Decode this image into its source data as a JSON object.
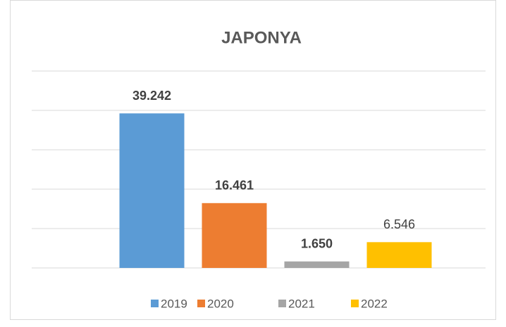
{
  "chart_data": {
    "type": "bar",
    "title": "JAPONYA",
    "categories": [
      null
    ],
    "series": [
      {
        "name": "2019",
        "color": "#5b9bd5",
        "values": [
          39242
        ],
        "value_labels": [
          "39.242"
        ]
      },
      {
        "name": "2020",
        "color": "#ed7d31",
        "values": [
          16461
        ],
        "value_labels": [
          "16.461"
        ]
      },
      {
        "name": "2021",
        "color": "#a5a5a5",
        "values": [
          1650
        ],
        "value_labels": [
          "1.650"
        ]
      },
      {
        "name": "2022",
        "color": "#ffc000",
        "values": [
          6546
        ],
        "value_labels": [
          "6.546"
        ]
      }
    ],
    "ylim": [
      0,
      50000
    ],
    "yticks": [
      0,
      10000,
      20000,
      30000,
      40000,
      50000
    ],
    "grid": true,
    "legend": "bottom"
  }
}
